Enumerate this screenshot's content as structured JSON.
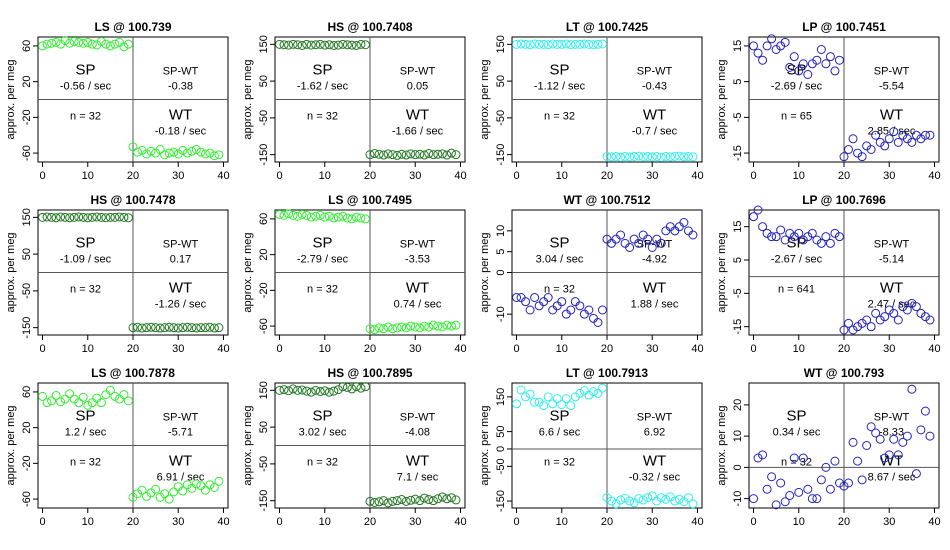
{
  "figure": {
    "ylabel": "approx. per meg",
    "x_ticks": [
      0,
      10,
      20,
      30,
      40
    ],
    "point_count": 40
  },
  "chart_data": [
    {
      "type": "scatter",
      "title": "LS @ 100.739",
      "color": "#33ee33",
      "ylim": [
        -70,
        70
      ],
      "yticks": [
        60,
        20,
        -20,
        -60
      ],
      "xlim": [
        -1,
        41
      ],
      "split_x": 20,
      "split_y": 0,
      "quadrants": {
        "sp": {
          "label": "SP",
          "rate": "-0.56 / sec"
        },
        "spwt": {
          "label": "SP-WT",
          "value": "-0.38"
        },
        "n": "n = 32",
        "wt": {
          "label": "WT",
          "rate": "-0.18 / sec"
        }
      },
      "x": [
        0,
        1,
        2,
        3,
        4,
        5,
        6,
        7,
        8,
        9,
        10,
        11,
        12,
        13,
        14,
        15,
        16,
        17,
        18,
        19,
        20,
        21,
        22,
        23,
        24,
        25,
        26,
        27,
        28,
        29,
        30,
        31,
        32,
        33,
        34,
        35,
        36,
        37,
        38,
        39
      ],
      "y": [
        60,
        62,
        63,
        64,
        62,
        66,
        63,
        65,
        64,
        63,
        64,
        62,
        61,
        65,
        62,
        60,
        62,
        64,
        59,
        62,
        -53,
        -59,
        -57,
        -61,
        -58,
        -60,
        -56,
        -62,
        -60,
        -59,
        -61,
        -57,
        -60,
        -58,
        -56,
        -59,
        -61,
        -60,
        -63,
        -62
      ]
    },
    {
      "type": "scatter",
      "title": "HS @ 100.7408",
      "color": "#227722",
      "ylim": [
        -170,
        170
      ],
      "yticks": [
        150,
        50,
        -50,
        -150
      ],
      "xlim": [
        -1,
        41
      ],
      "split_x": 20,
      "split_y": 0,
      "quadrants": {
        "sp": {
          "label": "SP",
          "rate": "-1.62 / sec"
        },
        "spwt": {
          "label": "SP-WT",
          "value": "0.05"
        },
        "n": "n = 32",
        "wt": {
          "label": "WT",
          "rate": "-1.66 / sec"
        }
      },
      "x": [
        0,
        1,
        2,
        3,
        4,
        5,
        6,
        7,
        8,
        9,
        10,
        11,
        12,
        13,
        14,
        15,
        16,
        17,
        18,
        19,
        20,
        21,
        22,
        23,
        24,
        25,
        26,
        27,
        28,
        29,
        30,
        31,
        32,
        33,
        34,
        35,
        36,
        37,
        38,
        39
      ],
      "y": [
        150,
        149,
        148,
        150,
        149,
        147,
        150,
        148,
        149,
        150,
        148,
        149,
        147,
        148,
        150,
        149,
        148,
        147,
        150,
        149,
        -150,
        -147,
        -149,
        -151,
        -148,
        -150,
        -152,
        -149,
        -151,
        -148,
        -150,
        -149,
        -151,
        -147,
        -150,
        -149,
        -148,
        -151,
        -146,
        -150
      ]
    },
    {
      "type": "scatter",
      "title": "LT @ 100.7425",
      "color": "#33eeee",
      "ylim": [
        -170,
        170
      ],
      "yticks": [
        150,
        50,
        -50,
        -150
      ],
      "xlim": [
        -1,
        41
      ],
      "split_x": 20,
      "split_y": 0,
      "quadrants": {
        "sp": {
          "label": "SP",
          "rate": "-1.12 / sec"
        },
        "spwt": {
          "label": "SP-WT",
          "value": "-0.43"
        },
        "n": "n = 32",
        "wt": {
          "label": "WT",
          "rate": "-0.7 / sec"
        }
      },
      "x": [
        0,
        1,
        2,
        3,
        4,
        5,
        6,
        7,
        8,
        9,
        10,
        11,
        12,
        13,
        14,
        15,
        16,
        17,
        18,
        19,
        20,
        21,
        22,
        23,
        24,
        25,
        26,
        27,
        28,
        29,
        30,
        31,
        32,
        33,
        34,
        35,
        36,
        37,
        38,
        39
      ],
      "y": [
        150,
        151,
        150,
        149,
        151,
        150,
        150,
        149,
        151,
        150,
        150,
        151,
        149,
        150,
        150,
        151,
        150,
        149,
        150,
        151,
        -155,
        -156,
        -155,
        -157,
        -155,
        -156,
        -155,
        -154,
        -156,
        -155,
        -156,
        -155,
        -157,
        -155,
        -156,
        -155,
        -154,
        -156,
        -155,
        -156
      ]
    },
    {
      "type": "scatter",
      "title": "LP @ 100.7451",
      "color": "#2222bb",
      "ylim": [
        -17.5,
        17.5
      ],
      "yticks": [
        15,
        5,
        -5,
        -15
      ],
      "xlim": [
        -1,
        41
      ],
      "split_x": 20,
      "split_y": 0,
      "quadrants": {
        "sp": {
          "label": "SP",
          "rate": "-2.69 / sec"
        },
        "spwt": {
          "label": "SP-WT",
          "value": "-5.54"
        },
        "n": "n = 65",
        "wt": {
          "label": "WT",
          "rate": "2.85 / sec"
        }
      },
      "x": [
        0,
        1,
        2,
        3,
        4,
        5,
        6,
        7,
        8,
        9,
        10,
        11,
        12,
        13,
        14,
        15,
        16,
        17,
        18,
        19,
        20,
        21,
        22,
        23,
        24,
        25,
        26,
        27,
        28,
        29,
        30,
        31,
        32,
        33,
        34,
        35,
        36,
        37,
        38,
        39
      ],
      "y": [
        15,
        13,
        11,
        15,
        17,
        14,
        15,
        16,
        9,
        12,
        8,
        10,
        7,
        10,
        11,
        14,
        10,
        12,
        8,
        11,
        -16,
        -14,
        -11,
        -15,
        -16,
        -13,
        -14,
        -10,
        -12,
        -13,
        -11,
        -9,
        -12,
        -10,
        -11,
        -12,
        -10,
        -11,
        -10,
        -10
      ]
    },
    {
      "type": "scatter",
      "title": "HS @ 100.7478",
      "color": "#227722",
      "ylim": [
        -170,
        170
      ],
      "yticks": [
        150,
        50,
        -50,
        -150
      ],
      "xlim": [
        -1,
        41
      ],
      "split_x": 20,
      "split_y": 0,
      "quadrants": {
        "sp": {
          "label": "SP",
          "rate": "-1.09 / sec"
        },
        "spwt": {
          "label": "SP-WT",
          "value": "0.17"
        },
        "n": "n = 32",
        "wt": {
          "label": "WT",
          "rate": "-1.26 / sec"
        }
      },
      "x": [
        0,
        1,
        2,
        3,
        4,
        5,
        6,
        7,
        8,
        9,
        10,
        11,
        12,
        13,
        14,
        15,
        16,
        17,
        18,
        19,
        20,
        21,
        22,
        23,
        24,
        25,
        26,
        27,
        28,
        29,
        30,
        31,
        32,
        33,
        34,
        35,
        36,
        37,
        38,
        39
      ],
      "y": [
        150,
        151,
        150,
        149,
        151,
        150,
        149,
        150,
        151,
        150,
        149,
        150,
        151,
        150,
        149,
        150,
        150,
        151,
        150,
        149,
        -150,
        -149,
        -151,
        -150,
        -149,
        -150,
        -151,
        -150,
        -149,
        -150,
        -151,
        -150,
        -149,
        -150,
        -151,
        -150,
        -150,
        -149,
        -151,
        -150
      ]
    },
    {
      "type": "scatter",
      "title": "LS @ 100.7495",
      "color": "#33ee33",
      "ylim": [
        -70,
        70
      ],
      "yticks": [
        60,
        20,
        -20,
        -60
      ],
      "xlim": [
        -1,
        41
      ],
      "split_x": 20,
      "split_y": 0,
      "quadrants": {
        "sp": {
          "label": "SP",
          "rate": "-2.79 / sec"
        },
        "spwt": {
          "label": "SP-WT",
          "value": "-3.53"
        },
        "n": "n = 32",
        "wt": {
          "label": "WT",
          "rate": "0.74 / sec"
        }
      },
      "x": [
        0,
        1,
        2,
        3,
        4,
        5,
        6,
        7,
        8,
        9,
        10,
        11,
        12,
        13,
        14,
        15,
        16,
        17,
        18,
        19,
        20,
        21,
        22,
        23,
        24,
        25,
        26,
        27,
        28,
        29,
        30,
        31,
        32,
        33,
        34,
        35,
        36,
        37,
        38,
        39
      ],
      "y": [
        65,
        64,
        66,
        64,
        63,
        65,
        64,
        62,
        63,
        64,
        62,
        63,
        61,
        62,
        63,
        61,
        60,
        62,
        61,
        60,
        -63,
        -64,
        -62,
        -63,
        -61,
        -63,
        -62,
        -61,
        -62,
        -60,
        -61,
        -62,
        -60,
        -61,
        -59,
        -60,
        -61,
        -59,
        -60,
        -59
      ]
    },
    {
      "type": "scatter",
      "title": "WT @ 100.7512",
      "color": "#2222bb",
      "ylim": [
        -15,
        15
      ],
      "yticks": [
        10,
        5,
        0,
        -10
      ],
      "xlim": [
        -1,
        41
      ],
      "split_x": 20,
      "split_y": 0,
      "quadrants": {
        "sp": {
          "label": "SP",
          "rate": "3.04 / sec"
        },
        "spwt": {
          "label": "SP-WT",
          "value": "-4.92"
        },
        "n": "n = 32",
        "wt": {
          "label": "WT",
          "rate": "1.88 / sec"
        }
      },
      "x": [
        0,
        1,
        2,
        3,
        4,
        5,
        6,
        7,
        8,
        9,
        10,
        11,
        12,
        13,
        14,
        15,
        16,
        17,
        18,
        19,
        20,
        21,
        22,
        23,
        24,
        25,
        26,
        27,
        28,
        29,
        30,
        31,
        32,
        33,
        34,
        35,
        36,
        37,
        38,
        39
      ],
      "y": [
        -6,
        -6,
        -7,
        -9,
        -6,
        -8,
        -7,
        -6,
        -9,
        -8,
        -7,
        -10,
        -9,
        -7,
        -8,
        -10,
        -9,
        -11,
        -12,
        -9,
        8,
        7,
        8,
        9,
        7,
        6,
        8,
        7,
        9,
        8,
        6,
        8,
        7,
        10,
        11,
        10,
        11,
        12,
        10,
        9
      ]
    },
    {
      "type": "scatter",
      "title": "LP @ 100.7696",
      "color": "#2222bb",
      "ylim": [
        -17.5,
        20
      ],
      "yticks": [
        15,
        5,
        -5,
        -15
      ],
      "xlim": [
        -1,
        41
      ],
      "split_x": 20,
      "split_y": 0,
      "quadrants": {
        "sp": {
          "label": "SP",
          "rate": "-2.67 / sec"
        },
        "spwt": {
          "label": "SP-WT",
          "value": "-5.14"
        },
        "n": "n = 641",
        "wt": {
          "label": "WT",
          "rate": "2.47 / sec"
        }
      },
      "x": [
        0,
        1,
        2,
        3,
        4,
        5,
        6,
        7,
        8,
        9,
        10,
        11,
        12,
        13,
        14,
        15,
        16,
        17,
        18,
        19,
        20,
        21,
        22,
        23,
        24,
        25,
        26,
        27,
        28,
        29,
        30,
        31,
        32,
        33,
        34,
        35,
        36,
        37,
        38,
        39
      ],
      "y": [
        18,
        20,
        15,
        13,
        12,
        12,
        14,
        11,
        13,
        12,
        13,
        11,
        12,
        13,
        11,
        10,
        12,
        10,
        13,
        12,
        -16,
        -14,
        -16,
        -15,
        -14,
        -13,
        -15,
        -11,
        -13,
        -12,
        -10,
        -11,
        -13,
        -9,
        -10,
        -8,
        -9,
        -11,
        -12,
        -13
      ]
    },
    {
      "type": "scatter",
      "title": "LS @ 100.7878",
      "color": "#33ee33",
      "ylim": [
        -70,
        70
      ],
      "yticks": [
        60,
        20,
        -20,
        -60
      ],
      "xlim": [
        -1,
        41
      ],
      "split_x": 20,
      "split_y": 0,
      "quadrants": {
        "sp": {
          "label": "SP",
          "rate": "1.2 / sec"
        },
        "spwt": {
          "label": "SP-WT",
          "value": "-5.71"
        },
        "n": "n = 32",
        "wt": {
          "label": "WT",
          "rate": "6.91 / sec"
        }
      },
      "x": [
        0,
        1,
        2,
        3,
        4,
        5,
        6,
        7,
        8,
        9,
        10,
        11,
        12,
        13,
        14,
        15,
        16,
        17,
        18,
        19,
        20,
        21,
        22,
        23,
        24,
        25,
        26,
        27,
        28,
        29,
        30,
        31,
        32,
        33,
        34,
        35,
        36,
        37,
        38,
        39
      ],
      "y": [
        55,
        48,
        50,
        56,
        49,
        52,
        58,
        52,
        48,
        54,
        45,
        48,
        53,
        48,
        57,
        62,
        55,
        52,
        57,
        50,
        -58,
        -54,
        -50,
        -57,
        -53,
        -49,
        -58,
        -54,
        -60,
        -52,
        -46,
        -51,
        -44,
        -48,
        -43,
        -45,
        -50,
        -44,
        -47,
        -40
      ]
    },
    {
      "type": "scatter",
      "title": "HS @ 100.7895",
      "color": "#227722",
      "ylim": [
        -170,
        170
      ],
      "yticks": [
        150,
        50,
        -50,
        -150
      ],
      "xlim": [
        -1,
        41
      ],
      "split_x": 20,
      "split_y": 0,
      "quadrants": {
        "sp": {
          "label": "SP",
          "rate": "3.02 / sec"
        },
        "spwt": {
          "label": "SP-WT",
          "value": "-4.08"
        },
        "n": "n = 32",
        "wt": {
          "label": "WT",
          "rate": "7.1 / sec"
        }
      },
      "x": [
        0,
        1,
        2,
        3,
        4,
        5,
        6,
        7,
        8,
        9,
        10,
        11,
        12,
        13,
        14,
        15,
        16,
        17,
        18,
        19,
        20,
        21,
        22,
        23,
        24,
        25,
        26,
        27,
        28,
        29,
        30,
        31,
        32,
        33,
        34,
        35,
        36,
        37,
        38,
        39
      ],
      "y": [
        150,
        152,
        149,
        154,
        150,
        151,
        148,
        145,
        150,
        147,
        149,
        145,
        148,
        152,
        160,
        158,
        154,
        160,
        156,
        160,
        -152,
        -155,
        -153,
        -150,
        -156,
        -152,
        -150,
        -147,
        -152,
        -149,
        -146,
        -150,
        -143,
        -147,
        -150,
        -145,
        -140,
        -145,
        -142,
        -148
      ]
    },
    {
      "type": "scatter",
      "title": "LT @ 100.7913",
      "color": "#33eeee",
      "ylim": [
        -170,
        190
      ],
      "yticks": [
        150,
        50,
        0,
        -50,
        -150
      ],
      "xlim": [
        -1,
        41
      ],
      "split_x": 20,
      "split_y": 0,
      "quadrants": {
        "sp": {
          "label": "SP",
          "rate": "6.6 / sec"
        },
        "spwt": {
          "label": "SP-WT",
          "value": "6.92"
        },
        "n": "n = 32",
        "wt": {
          "label": "WT",
          "rate": "-0.32 / sec"
        }
      },
      "x": [
        0,
        1,
        2,
        3,
        4,
        5,
        6,
        7,
        8,
        9,
        10,
        11,
        12,
        13,
        14,
        15,
        16,
        17,
        18,
        19,
        20,
        21,
        22,
        23,
        24,
        25,
        26,
        27,
        28,
        29,
        30,
        31,
        32,
        33,
        34,
        35,
        36,
        37,
        38,
        39
      ],
      "y": [
        130,
        170,
        150,
        158,
        135,
        135,
        125,
        150,
        130,
        145,
        128,
        145,
        125,
        150,
        160,
        168,
        155,
        165,
        160,
        175,
        -140,
        -150,
        -158,
        -147,
        -142,
        -150,
        -155,
        -143,
        -147,
        -140,
        -135,
        -150,
        -140,
        -145,
        -138,
        -150,
        -145,
        -152,
        -140,
        -158
      ]
    },
    {
      "type": "scatter",
      "title": "WT @ 100.793",
      "color": "#2222bb",
      "ylim": [
        -13,
        27
      ],
      "yticks": [
        20,
        10,
        0,
        -10
      ],
      "xlim": [
        -1,
        41
      ],
      "split_x": 20,
      "split_y": 0,
      "quadrants": {
        "sp": {
          "label": "SP",
          "rate": "0.34 / sec"
        },
        "spwt": {
          "label": "SP-WT",
          "value": "-8.33"
        },
        "n": "n = 32",
        "wt": {
          "label": "WT",
          "rate": "8.67 / sec"
        }
      },
      "x": [
        0,
        1,
        2,
        3,
        4,
        5,
        6,
        7,
        8,
        9,
        10,
        11,
        12,
        13,
        14,
        15,
        16,
        17,
        18,
        19,
        20,
        21,
        22,
        23,
        24,
        25,
        26,
        27,
        28,
        29,
        30,
        31,
        32,
        33,
        34,
        35,
        36,
        37,
        38,
        39
      ],
      "y": [
        -10,
        3,
        4,
        -7,
        -3,
        -12,
        -5,
        -11,
        -9,
        3,
        -8,
        3,
        -7,
        -10,
        -10,
        -4,
        0,
        -7,
        2,
        -5,
        -6,
        -5,
        8,
        2,
        -4,
        7,
        13,
        11,
        9,
        3,
        4,
        9,
        4,
        8,
        10,
        25,
        -2,
        12,
        18,
        10
      ]
    }
  ]
}
